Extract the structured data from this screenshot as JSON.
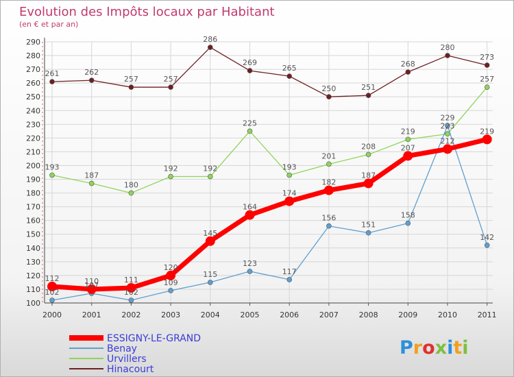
{
  "chart_data": {
    "type": "line",
    "title": "Evolution des Impôts locaux par Habitant",
    "subtitle": "(en € et par an)",
    "xlabel": "",
    "ylabel": "",
    "categories": [
      "2000",
      "2001",
      "2002",
      "2003",
      "2004",
      "2005",
      "2006",
      "2007",
      "2008",
      "2009",
      "2010",
      "2011"
    ],
    "ylim": [
      100,
      290
    ],
    "yticks": [
      100,
      110,
      120,
      130,
      140,
      150,
      160,
      170,
      180,
      190,
      200,
      210,
      220,
      230,
      240,
      250,
      260,
      270,
      280,
      290
    ],
    "grid": true,
    "legend_position": "bottom-left",
    "series": [
      {
        "name": "ESSIGNY-LE-GRAND",
        "color": "#ff0000",
        "values": [
          112,
          110,
          111,
          120,
          145,
          164,
          174,
          182,
          187,
          207,
          212,
          219
        ]
      },
      {
        "name": "Benay",
        "color": "#5f9fd0",
        "values": [
          102,
          107,
          102,
          109,
          115,
          123,
          117,
          156,
          151,
          158,
          229,
          142
        ]
      },
      {
        "name": "Urvillers",
        "color": "#8ed45a",
        "values": [
          193,
          187,
          180,
          192,
          192,
          225,
          193,
          201,
          208,
          219,
          223,
          257
        ]
      },
      {
        "name": "Hinacourt",
        "color": "#6e1f22",
        "values": [
          261,
          262,
          257,
          257,
          286,
          269,
          265,
          250,
          251,
          268,
          280,
          273
        ]
      }
    ]
  },
  "logo": {
    "text": "Proxiti"
  }
}
